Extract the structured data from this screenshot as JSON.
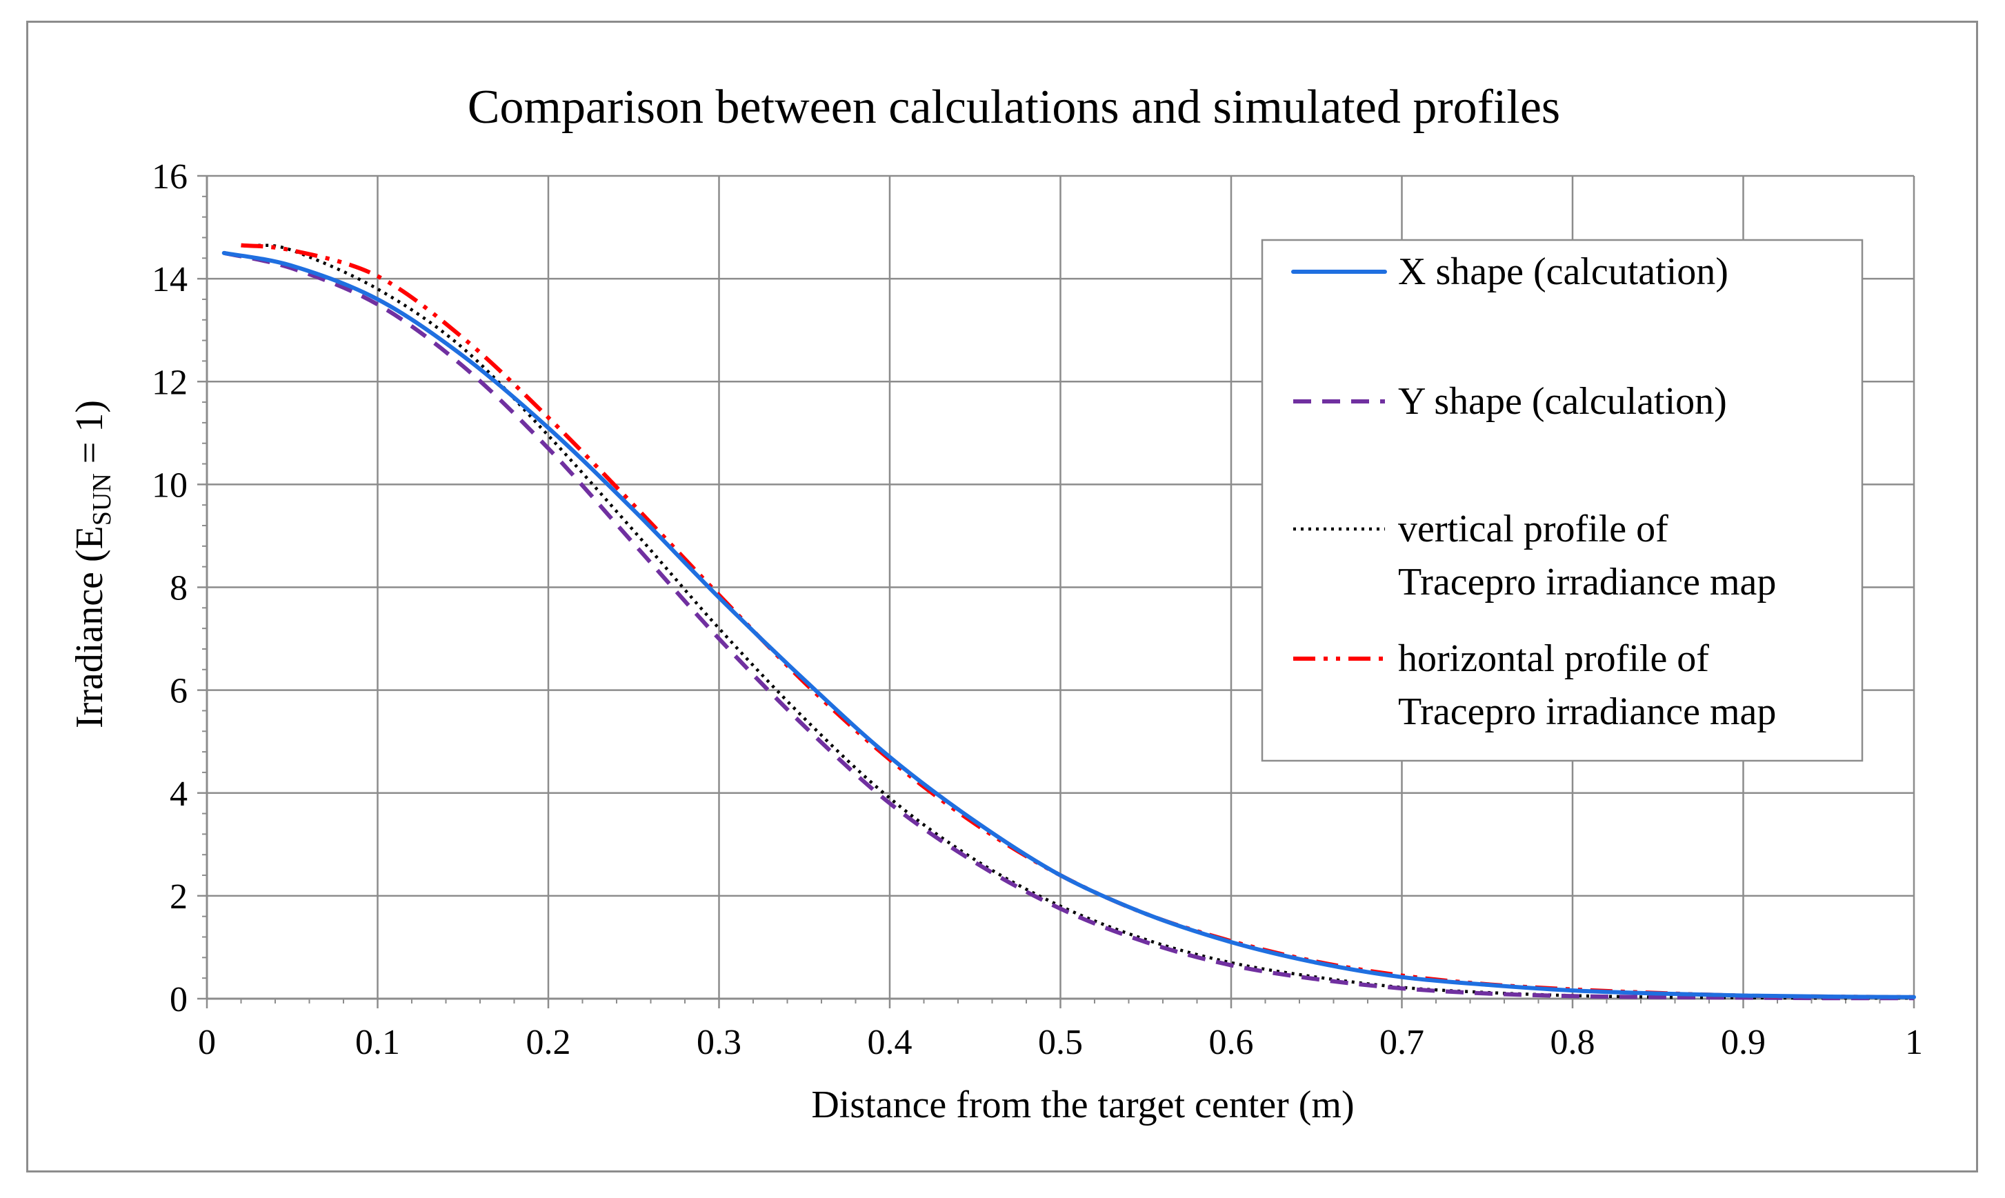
{
  "chart_data": {
    "type": "line",
    "title": "Comparison between calculations and simulated profiles",
    "xlabel": "Distance from the target center (m)",
    "ylabel": {
      "prefix": "Irradiance (E",
      "subscript": "SUN",
      "suffix": " = 1)"
    },
    "xlim": [
      0,
      1
    ],
    "ylim": [
      0,
      16
    ],
    "xticks": [
      "0",
      "0.1",
      "0.2",
      "0.3",
      "0.4",
      "0.5",
      "0.6",
      "0.7",
      "0.8",
      "0.9",
      "1"
    ],
    "yticks": [
      "0",
      "2",
      "4",
      "6",
      "8",
      "10",
      "12",
      "14",
      "16"
    ],
    "grid": true,
    "legend_position": "right",
    "series": [
      {
        "name": "X shape (calcutation)",
        "legend_lines": [
          "X shape (calcutation)"
        ],
        "style": "solid",
        "color": "#1f6fe0",
        "x": [
          0.01,
          0.05,
          0.1,
          0.15,
          0.2,
          0.25,
          0.3,
          0.35,
          0.4,
          0.45,
          0.5,
          0.55,
          0.6,
          0.65,
          0.7,
          0.75,
          0.8,
          0.85,
          0.9,
          0.95,
          1.0
        ],
        "y": [
          14.5,
          14.25,
          13.6,
          12.5,
          11.1,
          9.5,
          7.8,
          6.2,
          4.7,
          3.45,
          2.4,
          1.65,
          1.1,
          0.7,
          0.42,
          0.27,
          0.16,
          0.1,
          0.06,
          0.04,
          0.03
        ]
      },
      {
        "name": "Y shape (calculation)",
        "legend_lines": [
          "Y shape (calculation)"
        ],
        "style": "dash",
        "color": "#7030a0",
        "x": [
          0.01,
          0.05,
          0.1,
          0.15,
          0.2,
          0.25,
          0.3,
          0.35,
          0.4,
          0.45,
          0.5,
          0.55,
          0.6,
          0.65,
          0.7,
          0.75,
          0.8,
          0.85,
          0.9,
          0.95,
          1.0
        ],
        "y": [
          14.5,
          14.2,
          13.5,
          12.3,
          10.7,
          8.85,
          7.0,
          5.3,
          3.8,
          2.65,
          1.75,
          1.1,
          0.65,
          0.38,
          0.2,
          0.1,
          0.05,
          0.03,
          0.02,
          0.01,
          0.01
        ]
      },
      {
        "name": "vertical profile of Tracepro irradiance map",
        "legend_lines": [
          "vertical profile of",
          "Tracepro irradiance map"
        ],
        "style": "dot",
        "color": "#000000",
        "x": [
          0.03,
          0.05,
          0.1,
          0.15,
          0.2,
          0.25,
          0.3,
          0.35,
          0.4,
          0.45,
          0.5,
          0.55,
          0.6,
          0.65,
          0.7,
          0.75,
          0.8,
          0.85,
          0.9,
          0.95,
          1.0
        ],
        "y": [
          14.65,
          14.55,
          13.8,
          12.65,
          10.95,
          9.1,
          7.2,
          5.45,
          3.9,
          2.7,
          1.8,
          1.15,
          0.7,
          0.42,
          0.22,
          0.12,
          0.06,
          0.03,
          0.02,
          0.01,
          0.01
        ]
      },
      {
        "name": "horizontal profile of Tracepro irradiance map",
        "legend_lines": [
          "horizontal profile of",
          "Tracepro irradiance map"
        ],
        "style": "dashdotdot",
        "color": "#ff0000",
        "x": [
          0.02,
          0.05,
          0.1,
          0.15,
          0.2,
          0.25,
          0.3,
          0.35,
          0.4,
          0.45,
          0.5,
          0.55,
          0.6,
          0.65,
          0.7,
          0.75,
          0.8,
          0.85,
          0.9,
          0.95,
          1.0
        ],
        "y": [
          14.65,
          14.55,
          14.05,
          12.85,
          11.3,
          9.6,
          7.85,
          6.15,
          4.65,
          3.4,
          2.4,
          1.65,
          1.12,
          0.72,
          0.45,
          0.28,
          0.18,
          0.11,
          0.06,
          0.04,
          0.03
        ]
      }
    ]
  }
}
